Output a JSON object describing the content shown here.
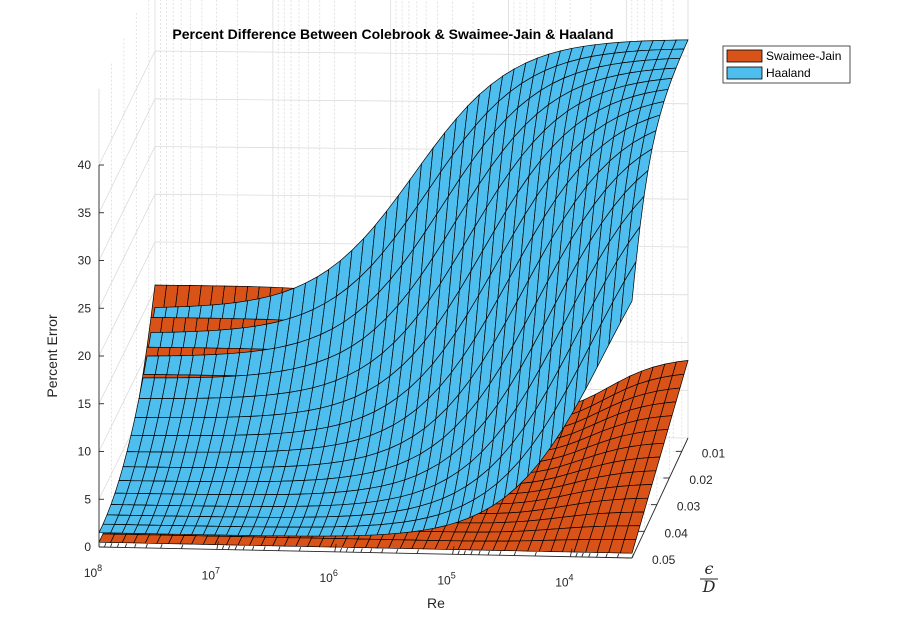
{
  "chart_data": {
    "type": "surface",
    "title": "Percent Difference Between Colebrook & Swaimee-Jain & Haaland",
    "xlabel": "Re",
    "ylabel_numerator": "ϵ",
    "ylabel_denominator": "D",
    "zlabel": "Percent Error",
    "x_scale": "log",
    "x_ticks": [
      {
        "value": 100000000,
        "base": "10",
        "exp": "8"
      },
      {
        "value": 10000000,
        "base": "10",
        "exp": "7"
      },
      {
        "value": 1000000,
        "base": "10",
        "exp": "6"
      },
      {
        "value": 100000,
        "base": "10",
        "exp": "5"
      },
      {
        "value": 10000,
        "base": "10",
        "exp": "4"
      }
    ],
    "y_ticks": [
      "0.01",
      "0.02",
      "0.03",
      "0.04",
      "0.05"
    ],
    "z_ticks": [
      "0",
      "5",
      "10",
      "15",
      "20",
      "25",
      "30",
      "35",
      "40"
    ],
    "zlim": [
      0,
      40
    ],
    "ylim": [
      0.005,
      0.05
    ],
    "xlim": [
      3000,
      100000000
    ],
    "grid": true,
    "legend_position": "top-right",
    "series": [
      {
        "name": "Swaimee-Jain",
        "color": "#D95319"
      },
      {
        "name": "Haaland",
        "color": "#4DBEEE"
      }
    ]
  }
}
